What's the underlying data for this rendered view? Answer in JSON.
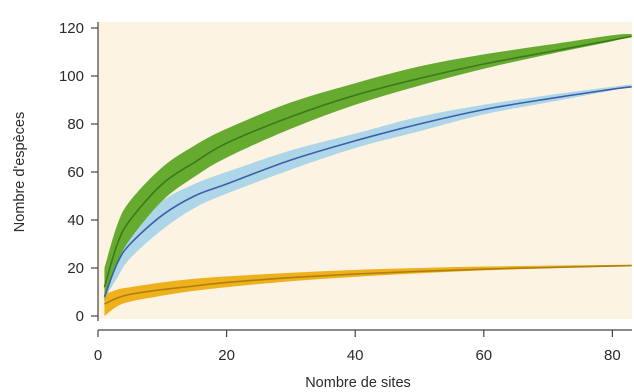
{
  "chart_data": {
    "type": "area",
    "xlabel": "Nombre de sites",
    "ylabel": "Nombre d'espèces",
    "xlim": [
      0,
      83
    ],
    "ylim": [
      0,
      120
    ],
    "x_ticks": [
      0,
      20,
      40,
      60,
      80
    ],
    "y_ticks": [
      0,
      20,
      40,
      60,
      80,
      100,
      120
    ],
    "grid": false,
    "legend": "none",
    "colors": {
      "plot_background": "#fcf3e3",
      "axis": "#444444"
    },
    "series": [
      {
        "fill_color": "#eeb11c",
        "line_color": "#b07d10",
        "x": [
          1,
          3,
          5,
          10,
          15,
          20,
          30,
          40,
          50,
          60,
          70,
          80,
          83
        ],
        "mean": [
          5,
          7.5,
          9,
          11,
          12.5,
          14,
          16,
          17.5,
          18.6,
          19.5,
          20.2,
          20.8,
          21
        ],
        "lower": [
          0,
          4,
          6,
          8.5,
          10.5,
          12,
          14.5,
          16.3,
          17.8,
          19,
          19.9,
          20.6,
          21
        ],
        "upper": [
          9,
          11,
          12,
          14,
          15.5,
          16.5,
          18,
          19.2,
          20,
          20.6,
          21,
          21.3,
          21.4
        ]
      },
      {
        "fill_color": "#add6e8",
        "line_color": "#3d5fa8",
        "x": [
          1,
          3,
          5,
          10,
          15,
          20,
          30,
          40,
          50,
          60,
          70,
          80,
          83
        ],
        "mean": [
          8,
          22,
          30,
          42,
          50,
          55,
          65,
          73,
          80,
          86,
          90.5,
          94.5,
          95.5
        ],
        "lower": [
          7,
          16,
          24,
          36,
          45,
          51,
          61,
          70,
          77,
          84,
          89,
          94,
          95.5
        ],
        "upper": [
          10,
          27,
          36,
          48,
          55,
          60,
          69,
          76,
          83,
          88,
          92,
          95.5,
          96.5
        ]
      },
      {
        "fill_color": "#67aa30",
        "line_color": "#3a7a1a",
        "x": [
          1,
          3,
          5,
          10,
          15,
          20,
          30,
          40,
          50,
          60,
          70,
          80,
          83
        ],
        "mean": [
          12,
          30,
          40,
          55,
          64,
          72,
          83,
          92,
          99,
          105,
          110,
          115,
          116.5
        ],
        "lower": [
          6,
          22,
          32,
          48,
          58,
          66,
          78,
          88,
          96,
          103,
          109,
          114.5,
          116.5
        ],
        "upper": [
          20,
          38,
          48,
          62,
          71,
          78,
          89,
          97,
          104,
          109,
          113,
          117,
          117.5
        ]
      }
    ]
  }
}
